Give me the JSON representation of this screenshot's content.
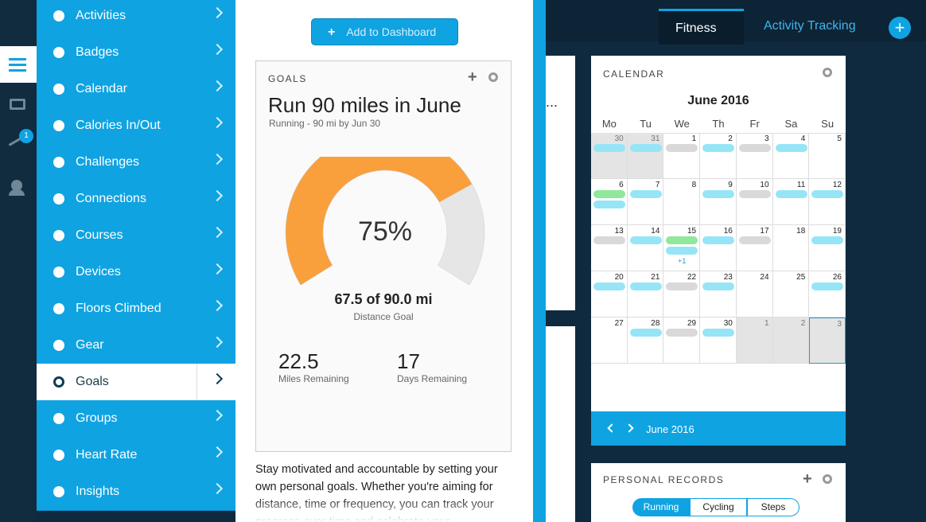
{
  "sidebar": {
    "badge": 1
  },
  "menu": {
    "items": [
      "Activities",
      "Badges",
      "Calendar",
      "Calories In/Out",
      "Challenges",
      "Connections",
      "Courses",
      "Devices",
      "Floors Climbed",
      "Gear",
      "Goals",
      "Groups",
      "Heart Rate",
      "Insights"
    ],
    "active_item": 10
  },
  "goal_panel": {
    "button": "Add to Dashboard",
    "card": {
      "heading": "GOALS",
      "title": "Run 90 miles in June",
      "subtitle": "Running - 90 mi by Jun 30",
      "gauge": {
        "value": 75,
        "label": "75%"
      },
      "progress": "67.5 of 90.0 mi",
      "progress_caption": "Distance Goal",
      "stats": [
        {
          "value": 22.5,
          "label": "Miles Remaining"
        },
        {
          "value": 17,
          "label": "Days Remaining"
        }
      ]
    },
    "description": "Stay motivated and accountable by setting your own personal goals. Whether you're aiming for distance, time or frequency, you can track your progress over time and celebrate your"
  },
  "side_card": {
    "text": "..."
  },
  "header": {
    "tabs": [
      "Fitness",
      "Activity Tracking"
    ]
  },
  "calendar": {
    "heading": "CALENDAR",
    "month": "June 2016",
    "weekdays": [
      "Mo",
      "Tu",
      "We",
      "Th",
      "Fr",
      "Sa",
      "Su"
    ],
    "weeks": [
      [
        30,
        31,
        1,
        2,
        3,
        4,
        5
      ],
      [
        6,
        7,
        8,
        9,
        10,
        11,
        12
      ],
      [
        13,
        14,
        15,
        16,
        17,
        18,
        19
      ],
      [
        20,
        21,
        22,
        23,
        24,
        25,
        26
      ],
      [
        27,
        28,
        29,
        30,
        1,
        2,
        3
      ]
    ],
    "more_label": "+1",
    "footer_month": "June 2016"
  },
  "personal_records": {
    "heading": "PERSONAL RECORDS",
    "tabs": [
      "Running",
      "Cycling",
      "Steps"
    ]
  }
}
